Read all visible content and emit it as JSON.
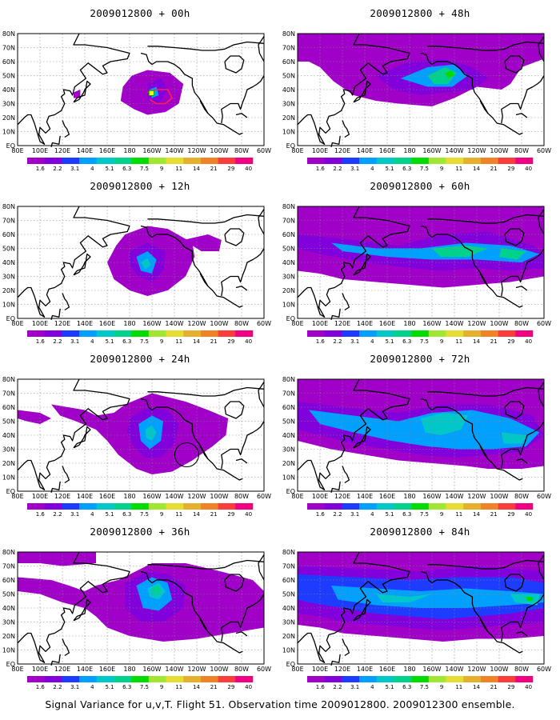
{
  "panels": [
    {
      "title": "2009012800 + 00h",
      "forecast_hour": 0
    },
    {
      "title": "2009012800 + 48h",
      "forecast_hour": 48
    },
    {
      "title": "2009012800 + 12h",
      "forecast_hour": 12
    },
    {
      "title": "2009012800 + 60h",
      "forecast_hour": 60
    },
    {
      "title": "2009012800 + 24h",
      "forecast_hour": 24
    },
    {
      "title": "2009012800 + 72h",
      "forecast_hour": 72
    },
    {
      "title": "2009012800 + 36h",
      "forecast_hour": 36
    },
    {
      "title": "2009012800 + 84h",
      "forecast_hour": 84
    }
  ],
  "axes": {
    "lon_labels": [
      "80E",
      "100E",
      "120E",
      "140E",
      "160E",
      "180",
      "160W",
      "140W",
      "120W",
      "100W",
      "80W",
      "60W"
    ],
    "lat_labels": [
      "80N",
      "70N",
      "60N",
      "50N",
      "40N",
      "30N",
      "20N",
      "10N",
      "EQ"
    ]
  },
  "colorbar": {
    "labels": [
      "1.6",
      "2.2",
      "3.1",
      "4",
      "5.1",
      "6.3",
      "7.5",
      "9",
      "11",
      "14",
      "21",
      "29",
      "40"
    ],
    "colors": [
      "#a000c8",
      "#8200dc",
      "#1e3cff",
      "#00a0ff",
      "#00c8c8",
      "#00d28c",
      "#00dc00",
      "#a0e632",
      "#e6dc32",
      "#e6af2d",
      "#f08228",
      "#fa3c3c",
      "#f00082"
    ]
  },
  "caption": "Signal Variance for u,v,T. Flight 51. Observation time 2009012800. 2009012300 ensemble."
}
